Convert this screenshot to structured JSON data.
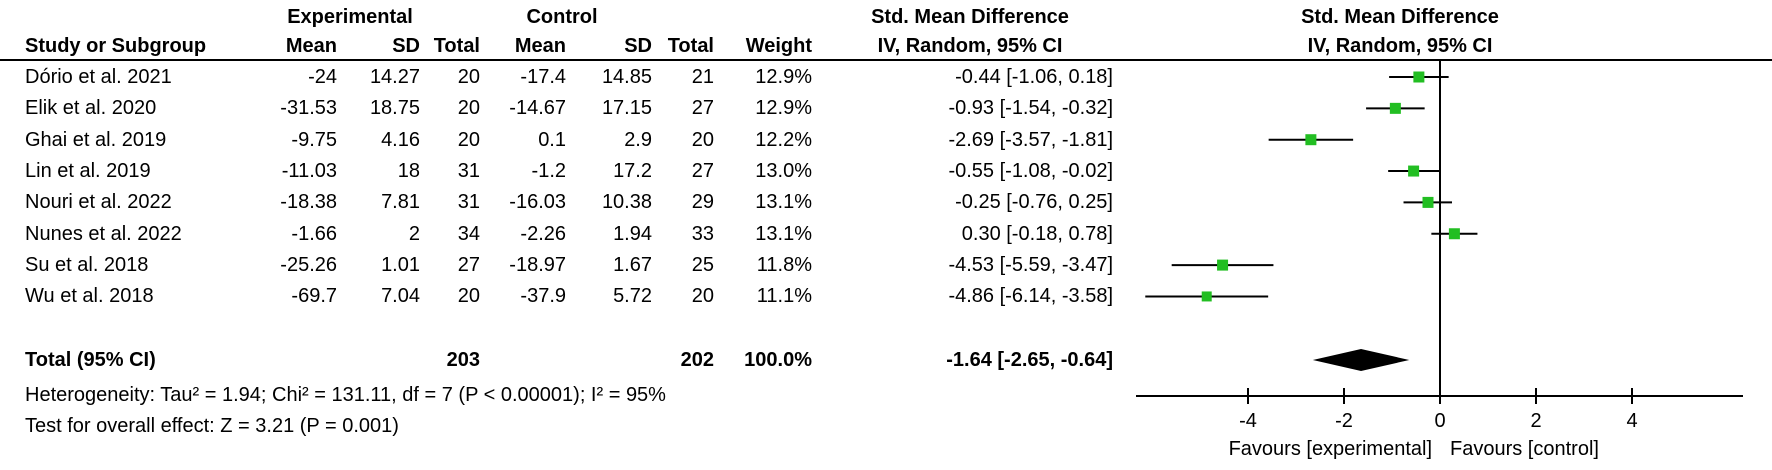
{
  "header": {
    "group_experimental": "Experimental",
    "group_control": "Control",
    "smd_title": "Std. Mean Difference",
    "smd_model": "IV, Random, 95% CI",
    "study": "Study or Subgroup",
    "mean": "Mean",
    "sd": "SD",
    "total": "Total",
    "weight": "Weight"
  },
  "plot_header": {
    "line1": "Std. Mean Difference",
    "line2": "IV, Random, 95% CI"
  },
  "table": {
    "rows": [
      {
        "study": "Dório et al. 2021",
        "exp_mean": "-24",
        "exp_sd": "14.27",
        "exp_total": "20",
        "ctl_mean": "-17.4",
        "ctl_sd": "14.85",
        "ctl_total": "21",
        "weight": "12.9%",
        "ci": "-0.44 [-1.06, 0.18]"
      },
      {
        "study": "Elik et al. 2020",
        "exp_mean": "-31.53",
        "exp_sd": "18.75",
        "exp_total": "20",
        "ctl_mean": "-14.67",
        "ctl_sd": "17.15",
        "ctl_total": "27",
        "weight": "12.9%",
        "ci": "-0.93 [-1.54, -0.32]"
      },
      {
        "study": "Ghai et al. 2019",
        "exp_mean": "-9.75",
        "exp_sd": "4.16",
        "exp_total": "20",
        "ctl_mean": "0.1",
        "ctl_sd": "2.9",
        "ctl_total": "20",
        "weight": "12.2%",
        "ci": "-2.69 [-3.57, -1.81]"
      },
      {
        "study": "Lin et al. 2019",
        "exp_mean": "-11.03",
        "exp_sd": "18",
        "exp_total": "31",
        "ctl_mean": "-1.2",
        "ctl_sd": "17.2",
        "ctl_total": "27",
        "weight": "13.0%",
        "ci": "-0.55 [-1.08, -0.02]"
      },
      {
        "study": "Nouri et al. 2022",
        "exp_mean": "-18.38",
        "exp_sd": "7.81",
        "exp_total": "31",
        "ctl_mean": "-16.03",
        "ctl_sd": "10.38",
        "ctl_total": "29",
        "weight": "13.1%",
        "ci": "-0.25 [-0.76, 0.25]"
      },
      {
        "study": "Nunes et al. 2022",
        "exp_mean": "-1.66",
        "exp_sd": "2",
        "exp_total": "34",
        "ctl_mean": "-2.26",
        "ctl_sd": "1.94",
        "ctl_total": "33",
        "weight": "13.1%",
        "ci": "0.30 [-0.18, 0.78]"
      },
      {
        "study": "Su et al. 2018",
        "exp_mean": "-25.26",
        "exp_sd": "1.01",
        "exp_total": "27",
        "ctl_mean": "-18.97",
        "ctl_sd": "1.67",
        "ctl_total": "25",
        "weight": "11.8%",
        "ci": "-4.53 [-5.59, -3.47]"
      },
      {
        "study": "Wu et al. 2018",
        "exp_mean": "-69.7",
        "exp_sd": "7.04",
        "exp_total": "20",
        "ctl_mean": "-37.9",
        "ctl_sd": "5.72",
        "ctl_total": "20",
        "weight": "11.1%",
        "ci": "-4.86 [-6.14, -3.58]"
      }
    ],
    "total_row": {
      "label": "Total (95% CI)",
      "exp_total": "203",
      "ctl_total": "202",
      "weight": "100.0%",
      "ci": "-1.64 [-2.65, -0.64]"
    }
  },
  "footer": {
    "heterogeneity": "Heterogeneity: Tau² = 1.94; Chi² = 131.11, df = 7 (P < 0.00001); I² = 95%",
    "overall_effect": "Test for overall effect: Z = 3.21 (P = 0.001)"
  },
  "chart_data": {
    "type": "forest",
    "effect_measure": "Std. Mean Difference",
    "model": "IV, Random, 95% CI",
    "studies": [
      {
        "name": "Dório et al. 2021",
        "smd": -0.44,
        "ci_low": -1.06,
        "ci_high": 0.18,
        "weight": 12.9
      },
      {
        "name": "Elik et al. 2020",
        "smd": -0.93,
        "ci_low": -1.54,
        "ci_high": -0.32,
        "weight": 12.9
      },
      {
        "name": "Ghai et al. 2019",
        "smd": -2.69,
        "ci_low": -3.57,
        "ci_high": -1.81,
        "weight": 12.2
      },
      {
        "name": "Lin et al. 2019",
        "smd": -0.55,
        "ci_low": -1.08,
        "ci_high": -0.02,
        "weight": 13.0
      },
      {
        "name": "Nouri et al. 2022",
        "smd": -0.25,
        "ci_low": -0.76,
        "ci_high": 0.25,
        "weight": 13.1
      },
      {
        "name": "Nunes et al. 2022",
        "smd": 0.3,
        "ci_low": -0.18,
        "ci_high": 0.78,
        "weight": 13.1
      },
      {
        "name": "Su et al. 2018",
        "smd": -4.53,
        "ci_low": -5.59,
        "ci_high": -3.47,
        "weight": 11.8
      },
      {
        "name": "Wu et al. 2018",
        "smd": -4.86,
        "ci_low": -6.14,
        "ci_high": -3.58,
        "weight": 11.1
      }
    ],
    "total": {
      "label": "Total (95% CI)",
      "smd": -1.64,
      "ci_low": -2.65,
      "ci_high": -0.64,
      "weight": 100.0
    },
    "xticks": [
      -4,
      -2,
      0,
      2,
      4
    ],
    "xlim": [
      -6.33,
      6.3
    ],
    "favours_left": "Favours [experimental]",
    "favours_right": "Favours [control]",
    "marker_color": "#22BE22",
    "line_color": "#000000"
  }
}
